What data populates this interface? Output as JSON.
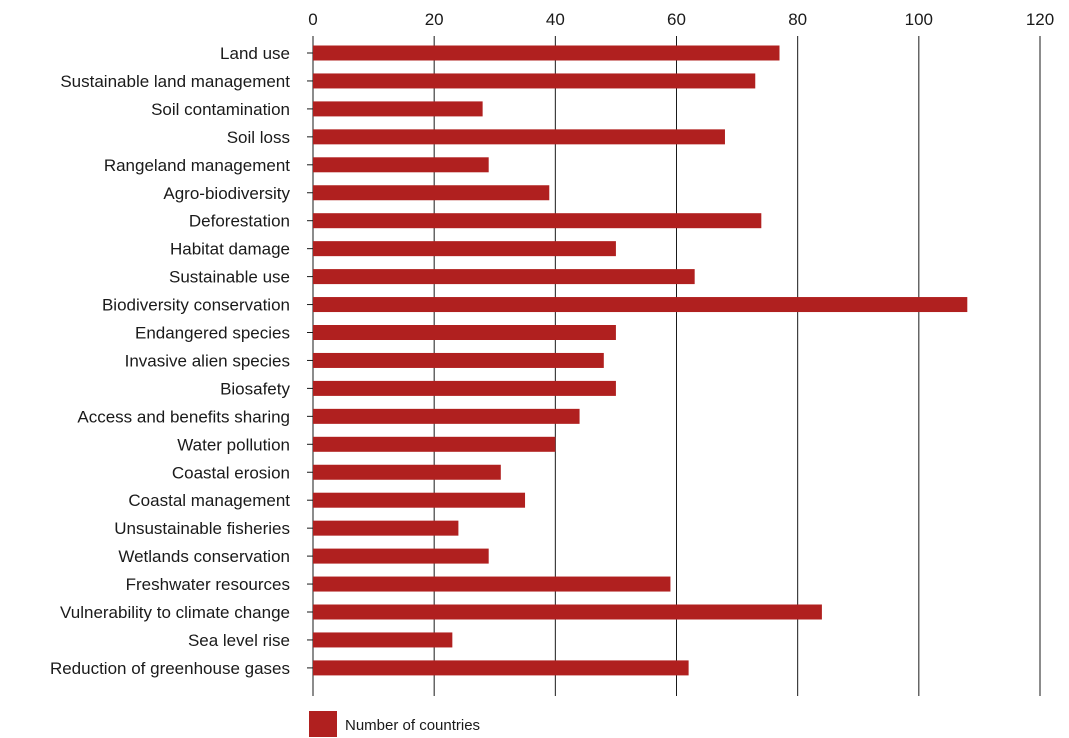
{
  "chart_data": {
    "type": "bar",
    "orientation": "horizontal",
    "categories": [
      "Land use",
      "Sustainable land management",
      "Soil contamination",
      "Soil loss",
      "Rangeland management",
      "Agro-biodiversity",
      "Deforestation",
      "Habitat damage",
      "Sustainable use",
      "Biodiversity conservation",
      "Endangered species",
      "Invasive alien species",
      "Biosafety",
      "Access and benefits sharing",
      "Water pollution",
      "Coastal erosion",
      "Coastal management",
      "Unsustainable fisheries",
      "Wetlands conservation",
      "Freshwater resources",
      "Vulnerability to climate change",
      "Sea level rise",
      "Reduction of greenhouse gases"
    ],
    "series": [
      {
        "name": "Number of countries",
        "color": "#b0201f",
        "values": [
          77,
          73,
          28,
          68,
          29,
          39,
          74,
          50,
          63,
          108,
          50,
          48,
          50,
          44,
          40,
          31,
          35,
          24,
          29,
          59,
          84,
          23,
          62
        ]
      }
    ],
    "xlim": [
      0,
      120
    ],
    "xticks": [
      0,
      20,
      40,
      60,
      80,
      100,
      120
    ],
    "xaxis_position": "top",
    "grid": "vertical",
    "legend_position": "bottom-center"
  }
}
